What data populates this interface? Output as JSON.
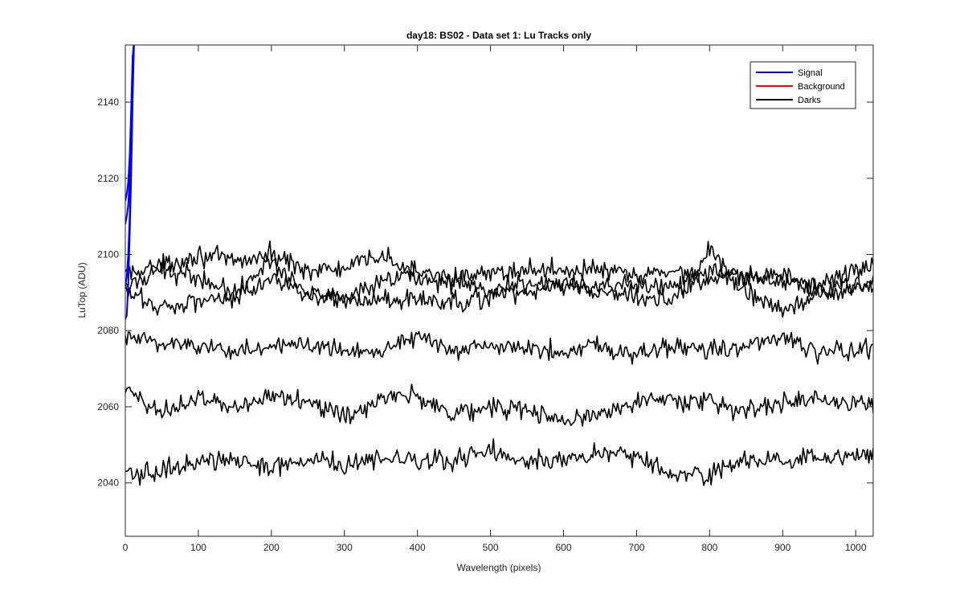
{
  "chart_data": {
    "type": "line",
    "title": "day18: BS02 - Data set 1: Lu Tracks only",
    "xlabel": "Wavelength (pixels)",
    "ylabel": "LuTop (ADU)",
    "xlim": [
      0,
      1024
    ],
    "ylim": [
      2026,
      2155
    ],
    "xticks": [
      0,
      100,
      200,
      300,
      400,
      500,
      600,
      700,
      800,
      900,
      1000
    ],
    "yticks": [
      2040,
      2060,
      2080,
      2100,
      2120,
      2140
    ],
    "grid": false,
    "legend": {
      "location": "top-right",
      "entries": [
        {
          "label": "Signal",
          "color": "#0000ff"
        },
        {
          "label": "Background",
          "color": "#ff0000"
        },
        {
          "label": "Darks",
          "color": "#000000"
        }
      ]
    },
    "signal_series": [
      {
        "color": "#0000ff",
        "x": [
          0,
          2,
          4,
          6,
          8,
          10,
          12
        ],
        "y": [
          2083,
          2084,
          2092,
          2105,
          2120,
          2140,
          2156
        ]
      },
      {
        "color": "#0000ff",
        "x": [
          0,
          2,
          4,
          6,
          8,
          10,
          12
        ],
        "y": [
          2092,
          2094,
          2100,
          2110,
          2126,
          2145,
          2156
        ]
      },
      {
        "color": "#0000ff",
        "x": [
          0,
          2,
          4,
          6,
          8,
          10,
          12
        ],
        "y": [
          2108,
          2110,
          2113,
          2120,
          2132,
          2150,
          2156
        ]
      },
      {
        "color": "#0000ff",
        "x": [
          0,
          2,
          4,
          6,
          8,
          10,
          12
        ],
        "y": [
          2114,
          2116,
          2119,
          2126,
          2138,
          2152,
          2156
        ]
      }
    ],
    "dark_series": [
      {
        "color": "#000000",
        "x": [
          0,
          50,
          100,
          150,
          200,
          250,
          300,
          350,
          400,
          450,
          500,
          550,
          600,
          650,
          700,
          750,
          800,
          850,
          900,
          950,
          1000,
          1024
        ],
        "y": [
          2091,
          2097,
          2100,
          2098,
          2100,
          2096,
          2096,
          2100,
          2094,
          2093,
          2095,
          2096,
          2096,
          2096,
          2094,
          2096,
          2093,
          2094,
          2093,
          2092,
          2096,
          2097
        ]
      },
      {
        "color": "#000000",
        "x": [
          0,
          50,
          100,
          150,
          200,
          250,
          300,
          350,
          400,
          450,
          500,
          550,
          600,
          650,
          700,
          750,
          800,
          850,
          900,
          950,
          1000,
          1024
        ],
        "y": [
          2095,
          2096,
          2094,
          2090,
          2094,
          2090,
          2088,
          2092,
          2096,
          2094,
          2090,
          2093,
          2092,
          2091,
          2092,
          2091,
          2095,
          2094,
          2095,
          2090,
          2092,
          2093
        ]
      },
      {
        "color": "#000000",
        "x": [
          0,
          50,
          100,
          150,
          200,
          250,
          300,
          350,
          400,
          450,
          500,
          550,
          600,
          650,
          700,
          750,
          800,
          850,
          900,
          950,
          1000,
          1024
        ],
        "y": [
          2090,
          2086,
          2088,
          2089,
          2098,
          2090,
          2088,
          2088,
          2088,
          2087,
          2089,
          2090,
          2092,
          2090,
          2089,
          2088,
          2101,
          2090,
          2085,
          2089,
          2092,
          2091
        ]
      },
      {
        "color": "#000000",
        "x": [
          0,
          50,
          100,
          150,
          200,
          250,
          300,
          350,
          400,
          450,
          500,
          550,
          600,
          650,
          700,
          750,
          800,
          850,
          900,
          950,
          1000,
          1024
        ],
        "y": [
          2078,
          2077,
          2076,
          2075,
          2075,
          2077,
          2075,
          2075,
          2079,
          2074,
          2076,
          2075,
          2075,
          2076,
          2074,
          2076,
          2075,
          2076,
          2078,
          2074,
          2075,
          2075
        ]
      },
      {
        "color": "#000000",
        "x": [
          0,
          50,
          100,
          150,
          200,
          250,
          300,
          350,
          400,
          450,
          500,
          550,
          600,
          650,
          700,
          750,
          800,
          850,
          900,
          950,
          1000,
          1024
        ],
        "y": [
          2064,
          2059,
          2062,
          2060,
          2063,
          2062,
          2057,
          2062,
          2063,
          2058,
          2060,
          2059,
          2056,
          2058,
          2062,
          2062,
          2061,
          2059,
          2061,
          2062,
          2061,
          2061
        ]
      },
      {
        "color": "#000000",
        "x": [
          0,
          50,
          100,
          150,
          200,
          250,
          300,
          350,
          400,
          450,
          500,
          550,
          600,
          650,
          700,
          750,
          800,
          850,
          900,
          950,
          1000,
          1024
        ],
        "y": [
          2042,
          2043,
          2046,
          2046,
          2044,
          2046,
          2045,
          2046,
          2046,
          2046,
          2049,
          2046,
          2046,
          2048,
          2047,
          2042,
          2042,
          2046,
          2046,
          2046,
          2047,
          2048
        ]
      }
    ]
  }
}
